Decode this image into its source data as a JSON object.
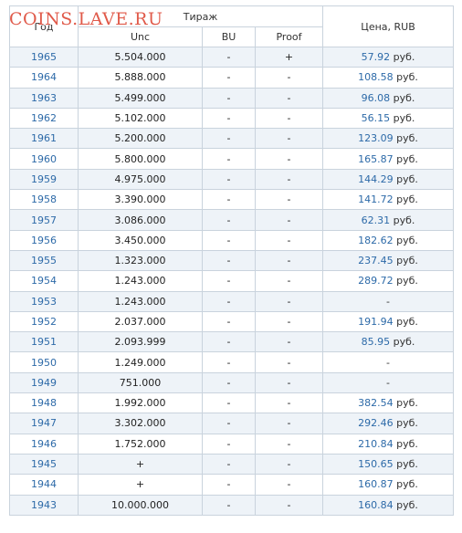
{
  "watermark": "COINS.LAVE.RU",
  "header": {
    "year": "Год",
    "mintage": "Тираж",
    "unc": "Unc",
    "bu": "BU",
    "proof": "Proof",
    "price": "Цена, RUB"
  },
  "rows": [
    {
      "year": "1965",
      "unc": "5.504.000",
      "bu": "-",
      "proof": "+",
      "price": "57.92",
      "unit": "руб."
    },
    {
      "year": "1964",
      "unc": "5.888.000",
      "bu": "-",
      "proof": "-",
      "price": "108.58",
      "unit": "руб."
    },
    {
      "year": "1963",
      "unc": "5.499.000",
      "bu": "-",
      "proof": "-",
      "price": "96.08",
      "unit": "руб."
    },
    {
      "year": "1962",
      "unc": "5.102.000",
      "bu": "-",
      "proof": "-",
      "price": "56.15",
      "unit": "руб."
    },
    {
      "year": "1961",
      "unc": "5.200.000",
      "bu": "-",
      "proof": "-",
      "price": "123.09",
      "unit": "руб."
    },
    {
      "year": "1960",
      "unc": "5.800.000",
      "bu": "-",
      "proof": "-",
      "price": "165.87",
      "unit": "руб."
    },
    {
      "year": "1959",
      "unc": "4.975.000",
      "bu": "-",
      "proof": "-",
      "price": "144.29",
      "unit": "руб."
    },
    {
      "year": "1958",
      "unc": "3.390.000",
      "bu": "-",
      "proof": "-",
      "price": "141.72",
      "unit": "руб."
    },
    {
      "year": "1957",
      "unc": "3.086.000",
      "bu": "-",
      "proof": "-",
      "price": "62.31",
      "unit": "руб."
    },
    {
      "year": "1956",
      "unc": "3.450.000",
      "bu": "-",
      "proof": "-",
      "price": "182.62",
      "unit": "руб."
    },
    {
      "year": "1955",
      "unc": "1.323.000",
      "bu": "-",
      "proof": "-",
      "price": "237.45",
      "unit": "руб."
    },
    {
      "year": "1954",
      "unc": "1.243.000",
      "bu": "-",
      "proof": "-",
      "price": "289.72",
      "unit": "руб."
    },
    {
      "year": "1953",
      "unc": "1.243.000",
      "bu": "-",
      "proof": "-",
      "price": "-",
      "unit": ""
    },
    {
      "year": "1952",
      "unc": "2.037.000",
      "bu": "-",
      "proof": "-",
      "price": "191.94",
      "unit": "руб."
    },
    {
      "year": "1951",
      "unc": "2.093.999",
      "bu": "-",
      "proof": "-",
      "price": "85.95",
      "unit": "руб."
    },
    {
      "year": "1950",
      "unc": "1.249.000",
      "bu": "-",
      "proof": "-",
      "price": "-",
      "unit": ""
    },
    {
      "year": "1949",
      "unc": "751.000",
      "bu": "-",
      "proof": "-",
      "price": "-",
      "unit": ""
    },
    {
      "year": "1948",
      "unc": "1.992.000",
      "bu": "-",
      "proof": "-",
      "price": "382.54",
      "unit": "руб."
    },
    {
      "year": "1947",
      "unc": "3.302.000",
      "bu": "-",
      "proof": "-",
      "price": "292.46",
      "unit": "руб."
    },
    {
      "year": "1946",
      "unc": "1.752.000",
      "bu": "-",
      "proof": "-",
      "price": "210.84",
      "unit": "руб."
    },
    {
      "year": "1945",
      "unc": "+",
      "bu": "-",
      "proof": "-",
      "price": "150.65",
      "unit": "руб."
    },
    {
      "year": "1944",
      "unc": "+",
      "bu": "-",
      "proof": "-",
      "price": "160.87",
      "unit": "руб."
    },
    {
      "year": "1943",
      "unc": "10.000.000",
      "bu": "-",
      "proof": "-",
      "price": "160.84",
      "unit": "руб."
    }
  ]
}
